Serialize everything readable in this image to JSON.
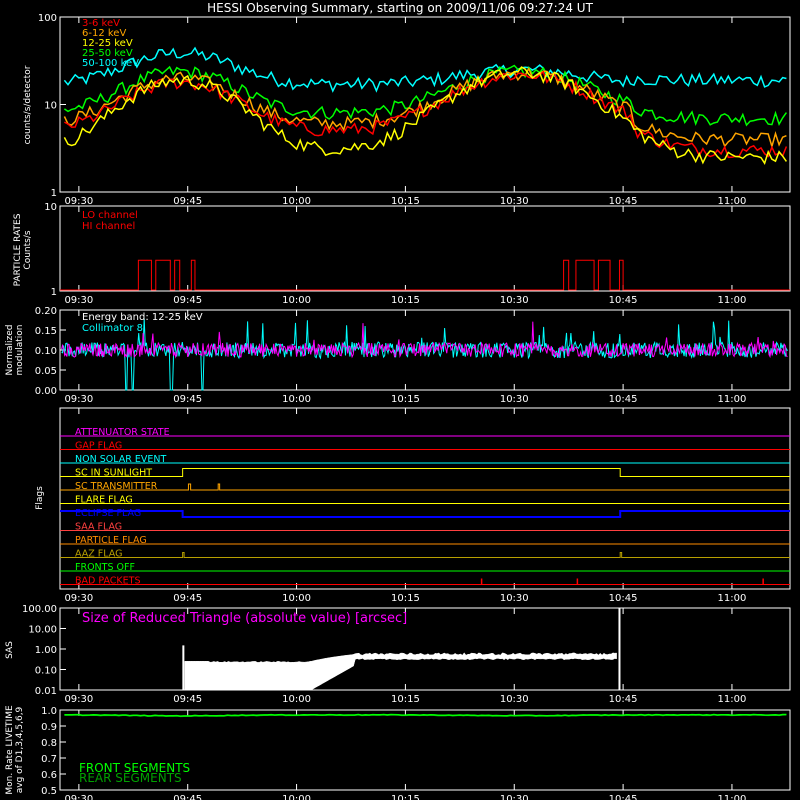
{
  "title": "HESSI Observing Summary, starting on 2009/11/06 09:27:24 UT",
  "time_ticks": [
    "09:30",
    "09:45",
    "10:00",
    "10:15",
    "10:30",
    "10:45",
    "11:00"
  ],
  "colors": {
    "background": "#000000",
    "axes": "#ffffff",
    "e3_6": "#ff0000",
    "e6_12": "#ffa500",
    "e12_25": "#ffff00",
    "e25_50": "#00ff00",
    "e50_100": "#00ffff",
    "lo_channel": "#ff0000",
    "hi_channel": "#ff0000",
    "energy_band": "#ffffff",
    "collimator": "#00ffff",
    "modulation": "#ff00ff"
  },
  "panels": {
    "count_rates": {
      "ylabel": "counts/s/detector",
      "yticks": [
        "100",
        "10",
        "1"
      ],
      "legend": [
        "3-6 keV",
        "6-12 keV",
        "12-25 keV",
        "25-50 keV",
        "50-100 keV"
      ]
    },
    "particle": {
      "ylabel": [
        "PARTICLE RATES",
        "Counts/s"
      ],
      "yticks": [
        "10",
        "1"
      ],
      "legend": [
        "LO channel",
        "HI channel"
      ]
    },
    "modulation": {
      "ylabel": [
        "Normalized",
        "modulation"
      ],
      "yticks": [
        "0.20",
        "0.15",
        "0.10",
        "0.05",
        "0.00"
      ],
      "annotations": [
        "Energy band: 12-25 keV",
        "Collimator 8"
      ]
    },
    "flags": {
      "ylabel": "Flags",
      "items": [
        {
          "name": "ATTENUATOR STATE",
          "color": "#ff00ff"
        },
        {
          "name": "GAP FLAG",
          "color": "#ff0000"
        },
        {
          "name": "NON SOLAR EVENT",
          "color": "#00ffff"
        },
        {
          "name": "SC IN SUNLIGHT",
          "color": "#ffff00"
        },
        {
          "name": "SC TRANSMITTER",
          "color": "#ffa500"
        },
        {
          "name": "FLARE FLAG",
          "color": "#ffff00"
        },
        {
          "name": "ECLIPSE FLAG",
          "color": "#0000ff"
        },
        {
          "name": "SAA FLAG",
          "color": "#ff4040"
        },
        {
          "name": "PARTICLE FLAG",
          "color": "#ff8c00"
        },
        {
          "name": "AAZ FLAG",
          "color": "#b8a000"
        },
        {
          "name": "FRONTS OFF",
          "color": "#00ff00"
        },
        {
          "name": "BAD PACKETS",
          "color": "#ff0000"
        }
      ]
    },
    "sas": {
      "ylabel": "SAS",
      "yticks": [
        "100.00",
        "10.00",
        "1.00",
        "0.10",
        "0.01"
      ],
      "annotation": "Size of Reduced Triangle (absolute value) [arcsec]"
    },
    "livetime": {
      "ylabel": [
        "Mon. Rate LIVETIME",
        "avg of D1,3,4,5,6,9"
      ],
      "yticks": [
        "1.0",
        "0.9",
        "0.8",
        "0.7",
        "0.6",
        "0.5"
      ],
      "legend": [
        {
          "name": "FRONT SEGMENTS",
          "color": "#00ff00"
        },
        {
          "name": "REAR SEGMENTS",
          "color": "#00a000"
        }
      ]
    }
  },
  "chart_data": [
    {
      "type": "line",
      "title": "HESSI Observing Summary, starting on 2009/11/06 09:27:24 UT",
      "ylabel": "counts/s/detector",
      "y_scale": "log",
      "ylim": [
        1,
        100
      ],
      "xlim": [
        "09:27:24",
        "11:08:00"
      ],
      "x": [
        "09:30",
        "09:45",
        "10:00",
        "10:15",
        "10:30",
        "10:45",
        "11:00",
        "11:07"
      ],
      "series": [
        {
          "name": "3-6 keV",
          "values": [
            5,
            18,
            7,
            7,
            22,
            8,
            3,
            3
          ]
        },
        {
          "name": "6-12 keV",
          "values": [
            6,
            20,
            8,
            8,
            24,
            9,
            4,
            4
          ]
        },
        {
          "name": "12-25 keV",
          "values": [
            3,
            19,
            7,
            7,
            24,
            8,
            2.5,
            2.5
          ]
        },
        {
          "name": "25-50 keV",
          "values": [
            8,
            24,
            10,
            9,
            25,
            11,
            7,
            7
          ]
        },
        {
          "name": "50-100 keV",
          "values": [
            18,
            38,
            22,
            16,
            25,
            20,
            20,
            20
          ]
        }
      ]
    },
    {
      "type": "line",
      "ylabel": "PARTICLE RATES Counts/s",
      "y_scale": "log",
      "ylim": [
        1,
        10
      ],
      "series": [
        {
          "name": "LO channel",
          "values": [
            1,
            1,
            1,
            1,
            1,
            1,
            1,
            1
          ]
        },
        {
          "name": "HI channel",
          "values": [
            1,
            1,
            1,
            1,
            1,
            1,
            1,
            1
          ]
        }
      ],
      "note": "HI channel steps to ~2 counts/s around 09:39-09:45 and 10:30-10:36"
    },
    {
      "type": "line",
      "ylabel": "Normalized modulation",
      "ylim": [
        0,
        0.2
      ],
      "series": [
        {
          "name": "Collimator 8",
          "values": [
            0.1,
            0.1,
            0.1,
            0.1,
            0.1,
            0.1,
            0.1,
            0.1
          ]
        }
      ]
    },
    {
      "type": "line",
      "ylabel": "SAS",
      "y_scale": "log",
      "ylim": [
        0.01,
        100
      ],
      "series": [
        {
          "name": "Size of Reduced Triangle (absolute value) [arcsec]",
          "values": [
            null,
            0.2,
            0.01,
            0.5,
            0.5,
            100,
            null,
            null
          ]
        }
      ]
    },
    {
      "type": "line",
      "ylabel": "Mon. Rate LIVETIME avg of D1,3,4,5,6,9",
      "ylim": [
        0.5,
        1.0
      ],
      "series": [
        {
          "name": "FRONT SEGMENTS",
          "values": [
            0.97,
            0.97,
            0.96,
            0.97,
            0.97,
            0.97,
            0.97,
            0.97
          ]
        },
        {
          "name": "REAR SEGMENTS",
          "values": [
            0.97,
            0.97,
            0.96,
            0.97,
            0.97,
            0.97,
            0.97,
            0.97
          ]
        }
      ]
    }
  ]
}
